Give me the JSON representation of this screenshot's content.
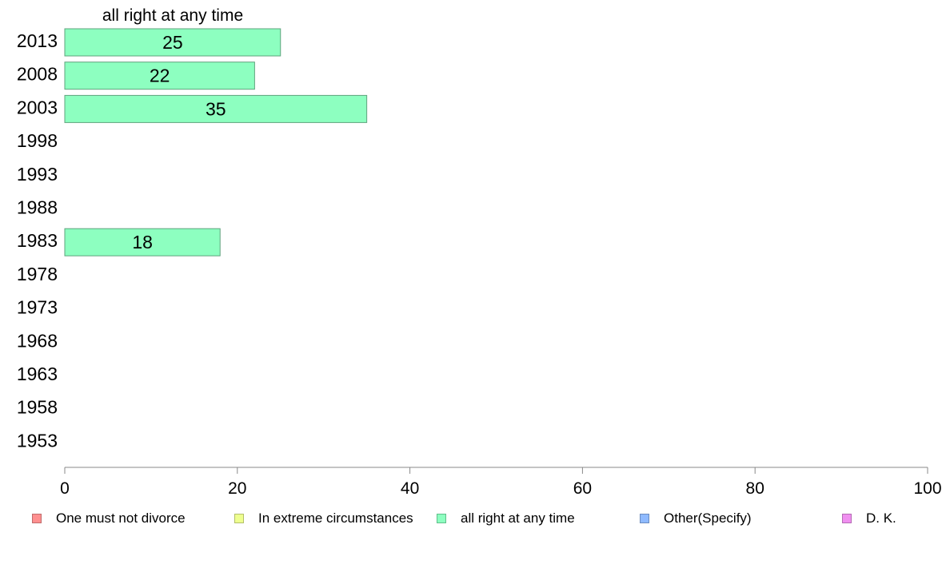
{
  "chart_data": {
    "type": "bar",
    "orientation": "horizontal",
    "title": "all right at any time",
    "categories": [
      "2013",
      "2008",
      "2003",
      "1998",
      "1993",
      "1988",
      "1983",
      "1978",
      "1973",
      "1968",
      "1963",
      "1958",
      "1953"
    ],
    "series": [
      {
        "name": "all right at any time",
        "color": "#8dffc0",
        "values": [
          25,
          22,
          35,
          null,
          null,
          null,
          18,
          null,
          null,
          null,
          null,
          null,
          null
        ]
      }
    ],
    "xlim": [
      0,
      100
    ],
    "xticks": [
      0,
      20,
      40,
      60,
      80,
      100
    ],
    "grid": false,
    "legend_placement": "bottom"
  },
  "legend": {
    "items": [
      {
        "label": "One must not divorce",
        "color": "#ff8f8f"
      },
      {
        "label": "In extreme circumstances",
        "color": "#eeff8f"
      },
      {
        "label": "all right at any time",
        "color": "#8dffc0"
      },
      {
        "label": "Other(Specify)",
        "color": "#8fbaff"
      },
      {
        "label": "D. K.",
        "color": "#f08ff0"
      }
    ]
  }
}
